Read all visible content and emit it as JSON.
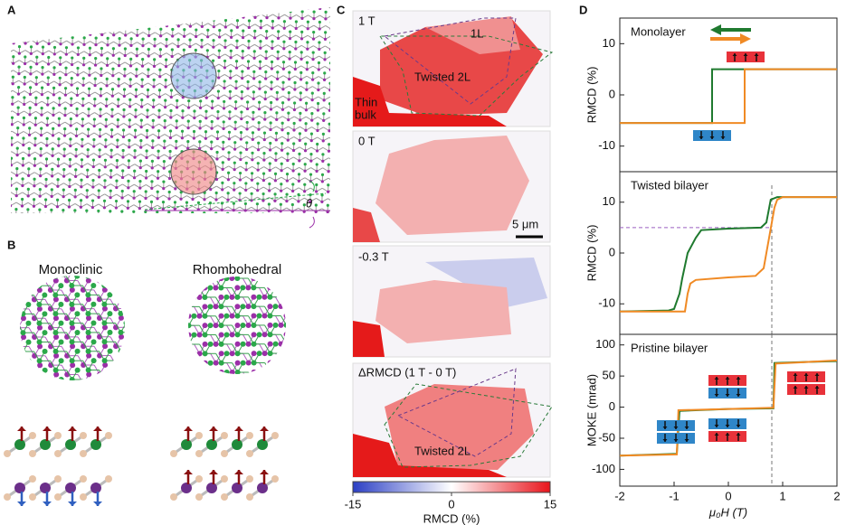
{
  "panels": {
    "A": {
      "label": "A",
      "theta": "θ"
    },
    "B": {
      "label": "B",
      "monoclinic": "Monoclinic",
      "rhombohedral": "Rhombohedral"
    },
    "C": {
      "label": "C",
      "field_1": "1 T",
      "monolayer": "1L",
      "twisted_1": "Twisted 2L",
      "thin_bulk": [
        "Thin",
        "bulk"
      ],
      "field_2": "0 T",
      "scale": "5 μm",
      "field_3": "-0.3 T",
      "difference": "ΔRMCD (1 T - 0 T)",
      "twisted_2": "Twisted 2L",
      "colorbar": {
        "ticks": [
          -15,
          0,
          15
        ],
        "label": "RMCD (%)"
      }
    },
    "D": {
      "label": "D"
    }
  },
  "chart_data": [
    {
      "type": "line",
      "title": "Monolayer",
      "ylabel": "RMCD (%)",
      "xlim": [
        -2,
        2
      ],
      "ylim": [
        -15,
        15
      ],
      "yticks": [
        -10,
        0,
        10
      ],
      "series": [
        {
          "color": "#1f7a2f",
          "x": [
            2,
            -0.3,
            -0.3,
            -2
          ],
          "values": [
            5,
            5,
            -5.5,
            -5.5
          ]
        },
        {
          "color": "#f08a24",
          "x": [
            -2,
            0.3,
            0.3,
            2
          ],
          "values": [
            -5.5,
            -5.5,
            5,
            5
          ]
        }
      ]
    },
    {
      "type": "line",
      "title": "Twisted bilayer",
      "ylabel": "RMCD (%)",
      "xlim": [
        -2,
        2
      ],
      "ylim": [
        -16,
        16
      ],
      "yticks": [
        -10,
        0,
        10
      ],
      "reference_y": 5,
      "reference_x": 0.8,
      "series": [
        {
          "color": "#1f7a2f",
          "x": [
            2,
            0.9,
            0.78,
            0.7,
            0.6,
            0,
            -0.5,
            -0.6,
            -0.75,
            -0.85,
            -0.9,
            -1.0,
            -1.1,
            -2
          ],
          "values": [
            11,
            11,
            10.5,
            6,
            5,
            4.8,
            4.5,
            3,
            0,
            -5,
            -8,
            -11,
            -11.3,
            -11.5
          ]
        },
        {
          "color": "#f08a24",
          "x": [
            -2,
            -0.8,
            -0.75,
            -0.7,
            -0.6,
            0,
            0.5,
            0.65,
            0.75,
            0.85,
            0.9,
            1.0,
            2
          ],
          "values": [
            -11.5,
            -11.5,
            -8,
            -6,
            -5.3,
            -4.8,
            -4.5,
            -3,
            3,
            9,
            10.5,
            11,
            11
          ]
        }
      ]
    },
    {
      "type": "line",
      "title": "Pristine bilayer",
      "ylabel": "MOKE (mrad)",
      "xlabel": "μ₀H (T)",
      "xlim": [
        -2,
        2
      ],
      "ylim": [
        -127,
        117
      ],
      "yticks": [
        -100,
        -50,
        0,
        50,
        100
      ],
      "xticks": [
        -2,
        -1,
        0,
        1,
        2
      ],
      "reference_x": 0.8,
      "series": [
        {
          "color": "#1f7a2f",
          "x": [
            2,
            0.85,
            0.83,
            0,
            -0.9,
            -0.95,
            -2
          ],
          "values": [
            74,
            71,
            -2,
            -3,
            -6,
            -75,
            -78
          ]
        },
        {
          "color": "#f08a24",
          "x": [
            -2,
            -0.95,
            -0.92,
            0,
            0.83,
            0.87,
            2
          ],
          "values": [
            -78,
            -76,
            -5,
            -3,
            -1,
            70,
            75
          ]
        }
      ]
    }
  ]
}
